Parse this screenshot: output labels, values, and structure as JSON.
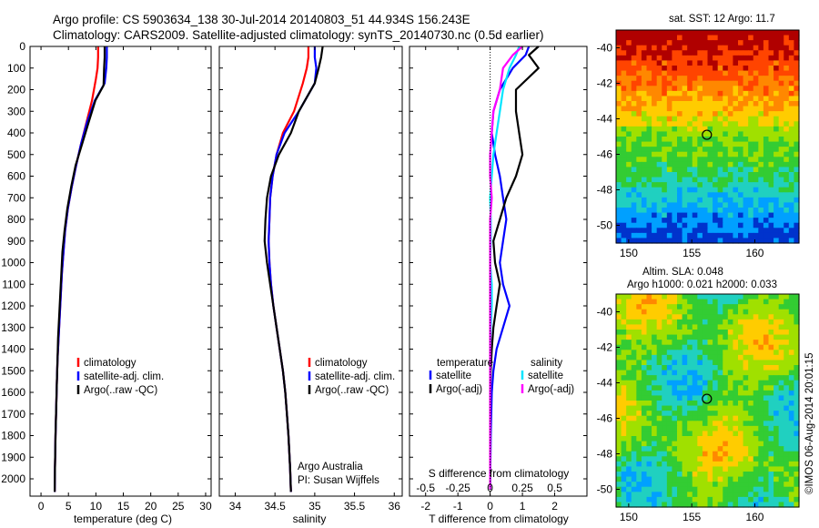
{
  "header": {
    "line1": "Argo profile: CS 5903634_138 30-Jul-2014 20140803_51 44.934S 156.243E",
    "line2": "Climatology: CARS2009. Satellite-adjusted climatology: synTS_20140730.nc (0.5d earlier)"
  },
  "colors": {
    "climatology": "#ff0000",
    "satellite_adj": "#0000ff",
    "argo": "#000000",
    "salinity_satellite": "#00e5ff",
    "salinity_argo": "#ff00ff"
  },
  "chart_data": [
    {
      "type": "line",
      "id": "temperature-profile",
      "xlabel": "temperature (deg C)",
      "ylabel": "",
      "xlim": [
        -2,
        31
      ],
      "ylim": [
        2080,
        0
      ],
      "xticks": [
        0,
        5,
        10,
        15,
        20,
        25,
        30
      ],
      "yticks": [
        0,
        100,
        200,
        300,
        400,
        500,
        600,
        700,
        800,
        900,
        1000,
        1100,
        1200,
        1300,
        1400,
        1500,
        1600,
        1700,
        1800,
        1900,
        2000
      ],
      "legend": {
        "position": "bottom-right",
        "entries": [
          "climatology",
          "satellite-adj. clim.",
          "Argo(..raw -QC)"
        ]
      },
      "series": [
        {
          "name": "climatology",
          "color": "#ff0000",
          "x": [
            10.4,
            10.4,
            10.3,
            10.0,
            9.3,
            8.3,
            7.3,
            6.4,
            5.6,
            4.9,
            4.4,
            4.1,
            3.8,
            3.6,
            3.4,
            3.2,
            3.0,
            2.9,
            2.8,
            2.65,
            2.55,
            2.5
          ],
          "y": [
            0,
            50,
            100,
            150,
            250,
            350,
            450,
            550,
            650,
            750,
            850,
            950,
            1050,
            1150,
            1250,
            1350,
            1450,
            1550,
            1650,
            1800,
            1950,
            2060
          ]
        },
        {
          "name": "satellite-adj. clim.",
          "color": "#0000ff",
          "x": [
            12.0,
            12.0,
            11.9,
            11.6,
            9.8,
            8.4,
            7.3,
            6.4,
            5.6,
            4.9,
            4.4,
            4.1,
            3.8,
            3.6,
            3.4,
            3.2,
            3.0,
            2.9,
            2.8,
            2.65,
            2.55,
            2.5
          ],
          "y": [
            0,
            50,
            100,
            170,
            250,
            350,
            450,
            550,
            650,
            750,
            850,
            950,
            1050,
            1150,
            1250,
            1350,
            1450,
            1550,
            1650,
            1800,
            1950,
            2060
          ]
        },
        {
          "name": "Argo(..raw -QC)",
          "color": "#000000",
          "x": [
            11.6,
            11.6,
            11.5,
            11.4,
            9.9,
            8.7,
            7.5,
            6.3,
            5.5,
            4.8,
            4.3,
            3.9,
            3.7,
            3.5,
            3.3,
            3.1,
            3.0,
            2.9,
            2.8,
            2.65,
            2.55,
            2.5
          ],
          "y": [
            0,
            50,
            100,
            180,
            250,
            350,
            450,
            550,
            650,
            750,
            850,
            950,
            1050,
            1150,
            1250,
            1350,
            1450,
            1550,
            1650,
            1800,
            1950,
            2060
          ]
        }
      ]
    },
    {
      "type": "line",
      "id": "salinity-profile",
      "xlabel": "salinity",
      "ylabel": "",
      "xlim": [
        33.8,
        36.1
      ],
      "ylim": [
        2080,
        0
      ],
      "xticks": [
        34,
        34.5,
        35,
        35.5,
        36
      ],
      "xtick_labels": [
        "34",
        "34.5",
        "35",
        "35.5",
        "36"
      ],
      "legend": {
        "position": "bottom-right",
        "entries": [
          "climatology",
          "satellite-adj. clim.",
          "Argo(..raw -QC)"
        ]
      },
      "annotation": [
        "Argo Australia",
        "PI: Susan Wijffels"
      ],
      "series": [
        {
          "name": "climatology",
          "color": "#ff0000",
          "x": [
            34.92,
            34.92,
            34.9,
            34.85,
            34.74,
            34.6,
            34.52,
            34.47,
            34.44,
            34.43,
            34.42,
            34.43,
            34.45,
            34.48,
            34.52,
            34.56,
            34.6,
            34.63,
            34.65,
            34.67,
            34.69,
            34.7
          ],
          "y": [
            0,
            50,
            100,
            170,
            300,
            400,
            500,
            600,
            700,
            800,
            900,
            1000,
            1100,
            1200,
            1300,
            1400,
            1500,
            1600,
            1700,
            1800,
            1950,
            2060
          ]
        },
        {
          "name": "satellite-adj. clim.",
          "color": "#0000ff",
          "x": [
            35.0,
            35.0,
            35.02,
            35.0,
            34.8,
            34.62,
            34.52,
            34.47,
            34.44,
            34.43,
            34.42,
            34.43,
            34.45,
            34.48,
            34.52,
            34.56,
            34.6,
            34.63,
            34.65,
            34.67,
            34.69,
            34.7
          ],
          "y": [
            0,
            50,
            100,
            170,
            300,
            400,
            500,
            600,
            700,
            800,
            900,
            1000,
            1100,
            1200,
            1300,
            1400,
            1500,
            1600,
            1700,
            1800,
            1950,
            2060
          ]
        },
        {
          "name": "Argo(..raw -QC)",
          "color": "#000000",
          "x": [
            35.1,
            35.08,
            35.05,
            35.0,
            34.8,
            34.7,
            34.55,
            34.45,
            34.4,
            34.38,
            34.37,
            34.4,
            34.44,
            34.48,
            34.52,
            34.56,
            34.6,
            34.63,
            34.65,
            34.67,
            34.69,
            34.7
          ],
          "y": [
            0,
            50,
            100,
            170,
            300,
            400,
            500,
            600,
            700,
            800,
            900,
            1000,
            1100,
            1200,
            1300,
            1400,
            1500,
            1600,
            1700,
            1800,
            1950,
            2060
          ]
        }
      ]
    },
    {
      "type": "line",
      "id": "difference-profile",
      "xlabel": "T difference from climatology",
      "xlabel_top": "S difference from climatology",
      "xlim": [
        -2.5,
        3
      ],
      "ylim": [
        2080,
        0
      ],
      "xticks": [
        -2,
        -1,
        0,
        1,
        2
      ],
      "xticks_top": [
        -0.5,
        -0.25,
        0,
        0.25,
        0.5
      ],
      "xticks_top_labels": [
        "-0.5",
        "-0.25",
        "0",
        "0.25",
        "0.5"
      ],
      "legend": {
        "position": "bottom",
        "groups": [
          "temperature",
          "salinity"
        ],
        "entries": [
          "satellite",
          "Argo(-adj)",
          "satellite",
          "Argo(-adj)"
        ]
      },
      "series": [
        {
          "name": "satellite",
          "group": "temperature",
          "color": "#0000ff",
          "x": [
            1.2,
            1.1,
            0.7,
            0.3,
            0.1,
            0.05,
            0.15,
            0.3,
            0.4,
            0.5,
            0.4,
            0.3,
            0.4,
            0.6,
            0.4,
            0.2,
            0.1,
            0.05,
            0.02,
            0.0
          ],
          "y": [
            0,
            40,
            100,
            200,
            300,
            400,
            500,
            600,
            700,
            800,
            900,
            1000,
            1100,
            1200,
            1300,
            1400,
            1500,
            1600,
            1800,
            2050
          ]
        },
        {
          "name": "Argo(-adj)",
          "group": "temperature",
          "color": "#000000",
          "x": [
            1.5,
            1.2,
            1.5,
            0.8,
            0.8,
            0.9,
            1.0,
            0.8,
            0.5,
            0.3,
            0.1,
            0.15,
            0.3,
            0.2,
            0.1,
            0.05,
            0.02,
            0.0,
            0.0,
            0.0
          ],
          "y": [
            0,
            40,
            100,
            200,
            300,
            400,
            500,
            600,
            700,
            800,
            900,
            1000,
            1100,
            1200,
            1300,
            1400,
            1500,
            1600,
            1800,
            2050
          ]
        },
        {
          "name": "satellite",
          "group": "salinity",
          "color": "#00e5ff",
          "x": [
            0.9,
            0.8,
            0.6,
            0.4,
            0.3,
            0.2,
            0.1,
            0.05,
            0.0,
            0.02,
            0.02,
            0.0,
            0.05,
            0.05,
            0.02,
            0.0,
            0.0,
            0.0,
            0.0,
            0.0
          ],
          "y": [
            0,
            40,
            100,
            200,
            300,
            400,
            500,
            600,
            700,
            800,
            900,
            1000,
            1100,
            1200,
            1300,
            1400,
            1500,
            1600,
            1800,
            2050
          ]
        },
        {
          "name": "Argo(-adj)",
          "group": "salinity",
          "color": "#ff00ff",
          "x": [
            1.0,
            0.7,
            0.4,
            0.3,
            0.1,
            0.05,
            0.0,
            0.0,
            0.05,
            0.0,
            0.0,
            0.0,
            0.0,
            0.0,
            0.0,
            0.0,
            0.0,
            0.0,
            0.0,
            0.0
          ],
          "y": [
            0,
            40,
            100,
            200,
            300,
            400,
            500,
            600,
            700,
            800,
            900,
            1000,
            1100,
            1200,
            1300,
            1400,
            1500,
            1600,
            1800,
            2050
          ]
        }
      ]
    },
    {
      "type": "heatmap",
      "id": "sst-map",
      "title": "sat. SST: 12 Argo: 11.7",
      "xlim": [
        149,
        163.5
      ],
      "ylim": [
        -51,
        -39
      ],
      "xticks": [
        150,
        155,
        160
      ],
      "yticks": [
        -40,
        -42,
        -44,
        -46,
        -48,
        -50
      ],
      "marker": {
        "lon": 156.2,
        "lat": -44.9
      },
      "color_scale": [
        "#0033cc",
        "#00a0ff",
        "#20d0c0",
        "#33cc33",
        "#a0e000",
        "#ffcc00",
        "#ff8800",
        "#ff4400",
        "#b00000"
      ]
    },
    {
      "type": "heatmap",
      "id": "sla-map",
      "title": [
        "Altim. SLA: 0.048",
        "Argo h1000: 0.021 h2000: 0.033"
      ],
      "xlim": [
        149,
        163.5
      ],
      "ylim": [
        -51,
        -39
      ],
      "xticks": [
        150,
        155,
        160
      ],
      "yticks": [
        -40,
        -42,
        -44,
        -46,
        -48,
        -50
      ],
      "marker": {
        "lon": 156.2,
        "lat": -44.9
      },
      "color_scale": [
        "#0033cc",
        "#00a0ff",
        "#20d0c0",
        "#33cc33",
        "#a0e000",
        "#ffcc00",
        "#ff8800",
        "#ff4400",
        "#b00000"
      ]
    }
  ],
  "footer_stamp": "©IMOS 06-Aug-2014 20:01:15"
}
